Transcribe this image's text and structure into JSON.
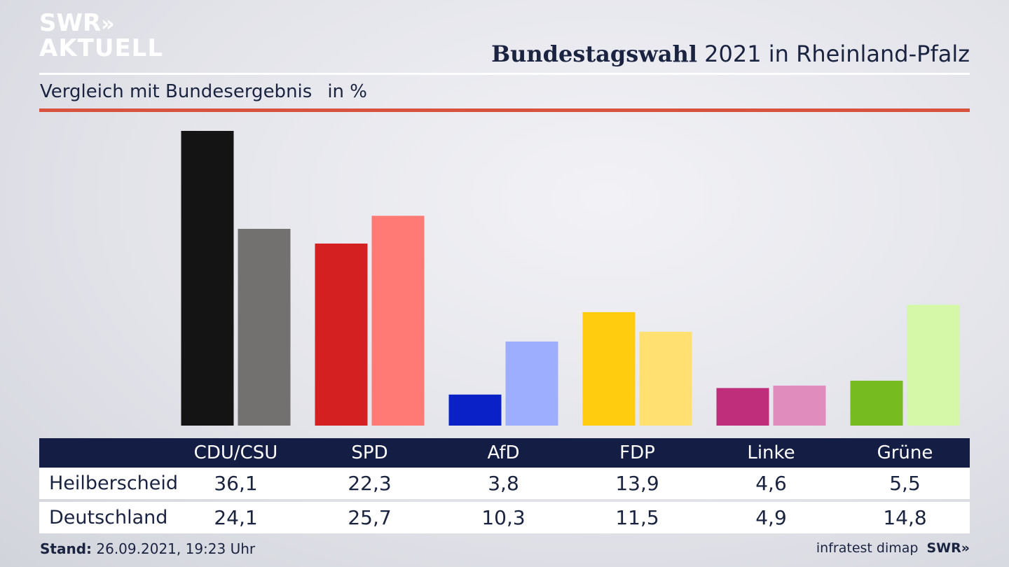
{
  "branding": {
    "logo_line1": "SWR",
    "logo_chevrons": "»",
    "logo_line2": "AKTUELL",
    "footer_brand": "SWR»"
  },
  "header": {
    "title_bold": "Bundestagswahl",
    "title_rest": "2021 in Rheinland-Pfalz",
    "subtitle": "Vergleich mit Bundesergebnis",
    "unit": "in %"
  },
  "colors": {
    "title_text": "#1a2340",
    "accent_line": "#d8523e",
    "table_header_bg": "#141d44"
  },
  "chart_data": {
    "type": "bar",
    "categories": [
      "CDU/CSU",
      "SPD",
      "AfD",
      "FDP",
      "Linke",
      "Grüne"
    ],
    "series": [
      {
        "name": "Heilberscheid",
        "values": [
          36.1,
          22.3,
          3.8,
          13.9,
          4.6,
          5.5
        ],
        "colors": [
          "#141414",
          "#d42020",
          "#0a21c8",
          "#ffcc10",
          "#be2e7a",
          "#76bb20"
        ]
      },
      {
        "name": "Deutschland",
        "values": [
          24.1,
          25.7,
          10.3,
          11.5,
          4.9,
          14.8
        ],
        "colors": [
          "#72716f",
          "#ff7a74",
          "#9eaeff",
          "#ffe070",
          "#e08cbc",
          "#d4f7a8"
        ]
      }
    ],
    "ylim": [
      0,
      36.1
    ],
    "grid": false,
    "legend": "table-below"
  },
  "table": {
    "rows": [
      {
        "label": "Heilberscheid",
        "values": [
          "36,1",
          "22,3",
          "3,8",
          "13,9",
          "4,6",
          "5,5"
        ]
      },
      {
        "label": "Deutschland",
        "values": [
          "24,1",
          "25,7",
          "10,3",
          "11,5",
          "4,9",
          "14,8"
        ]
      }
    ]
  },
  "footer": {
    "stand_label": "Stand:",
    "stand_value": "26.09.2021, 19:23 Uhr",
    "source": "infratest dimap"
  }
}
